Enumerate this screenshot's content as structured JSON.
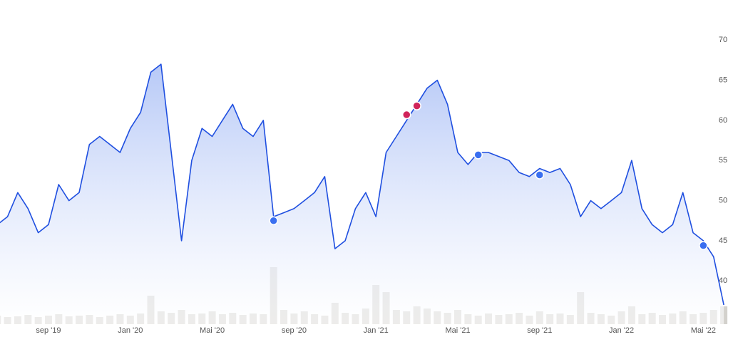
{
  "chart_data": {
    "type": "line",
    "categories": [
      null,
      null,
      null,
      null,
      null,
      "sep '19",
      null,
      null,
      null,
      null,
      null,
      null,
      null,
      "Jan '20",
      null,
      null,
      null,
      null,
      null,
      null,
      null,
      "Mai '20",
      null,
      null,
      null,
      null,
      null,
      null,
      null,
      "sep '20",
      null,
      null,
      null,
      null,
      null,
      null,
      null,
      "Jan '21",
      null,
      null,
      null,
      null,
      null,
      null,
      null,
      "Mai '21",
      null,
      null,
      null,
      null,
      null,
      null,
      null,
      "sep '21",
      null,
      null,
      null,
      null,
      null,
      null,
      null,
      "Jan '22",
      null,
      null,
      null,
      null,
      null,
      null,
      null,
      "Mai '22",
      null,
      null
    ],
    "values": [
      47,
      48,
      51,
      49,
      46,
      47,
      52,
      50,
      51,
      57,
      58,
      57,
      56,
      59,
      61,
      66,
      67,
      56,
      45,
      55,
      59,
      58,
      60,
      62,
      59,
      58,
      60,
      48,
      48.5,
      49,
      50,
      51,
      53,
      44,
      45,
      49,
      51,
      48,
      56,
      58,
      60,
      62,
      64,
      65,
      62,
      56,
      54.5,
      56,
      56,
      55.5,
      55,
      53.5,
      53,
      54,
      53.5,
      54,
      52,
      48,
      50,
      49,
      50,
      51,
      55,
      49,
      47,
      46,
      47,
      51,
      46,
      45,
      43,
      37
    ],
    "color": "#1f4fe0",
    "ylim": [
      34.6,
      75
    ],
    "yticks": [
      40,
      45,
      50,
      55,
      60,
      65,
      70
    ],
    "volume": {
      "color": "#d3d1cc",
      "ylim": [
        0,
        100
      ],
      "values": [
        12,
        10,
        11,
        13,
        10,
        12,
        14,
        11,
        12,
        13,
        10,
        12,
        14,
        12,
        15,
        40,
        18,
        16,
        20,
        14,
        15,
        18,
        14,
        16,
        13,
        15,
        14,
        80,
        20,
        15,
        18,
        14,
        12,
        30,
        16,
        14,
        22,
        55,
        45,
        20,
        18,
        25,
        22,
        18,
        16,
        20,
        14,
        12,
        15,
        13,
        14,
        16,
        12,
        18,
        14,
        15,
        13,
        45,
        16,
        14,
        12,
        18,
        25,
        14,
        16,
        13,
        15,
        18,
        14,
        16,
        20,
        25
      ]
    },
    "markers": [
      {
        "index": 27,
        "value": 47.5,
        "color": "#3a6ff0"
      },
      {
        "index": 40,
        "value": 60.7,
        "color": "#d0245a"
      },
      {
        "index": 41,
        "value": 61.8,
        "color": "#d0245a"
      },
      {
        "index": 47,
        "value": 55.7,
        "color": "#3a6ff0"
      },
      {
        "index": 53,
        "value": 53.2,
        "color": "#3a6ff0"
      },
      {
        "index": 69,
        "value": 44.4,
        "color": "#3a6ff0"
      }
    ]
  }
}
